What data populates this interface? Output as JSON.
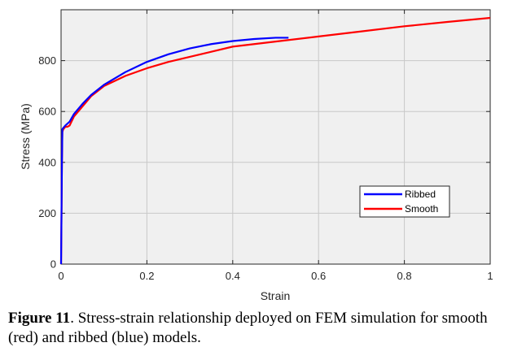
{
  "chart_data": {
    "type": "line",
    "xlabel": "Strain",
    "ylabel": "Stress (MPa)",
    "xlim": [
      0,
      1
    ],
    "ylim": [
      0,
      1000
    ],
    "xticks": [
      0,
      0.2,
      0.4,
      0.6,
      0.8,
      1
    ],
    "xtick_labels": [
      "0",
      "0.2",
      "0.4",
      "0.6",
      "0.8",
      "1"
    ],
    "yticks": [
      0,
      200,
      400,
      600,
      800
    ],
    "ytick_labels": [
      "0",
      "200",
      "400",
      "600",
      "800"
    ],
    "grid": true,
    "legend_position": "bottom-right",
    "series": [
      {
        "name": "Ribbed",
        "color": "#0000ff",
        "x": [
          0,
          0.001,
          0.002,
          0.003,
          0.005,
          0.01,
          0.02,
          0.03,
          0.05,
          0.07,
          0.1,
          0.15,
          0.2,
          0.25,
          0.3,
          0.35,
          0.4,
          0.45,
          0.5,
          0.53
        ],
        "y": [
          0,
          200,
          400,
          530,
          535,
          545,
          560,
          590,
          630,
          665,
          705,
          755,
          795,
          825,
          848,
          865,
          877,
          885,
          890,
          890
        ]
      },
      {
        "name": "Smooth",
        "color": "#ff0000",
        "x": [
          0,
          0.001,
          0.002,
          0.003,
          0.005,
          0.01,
          0.015,
          0.02,
          0.03,
          0.05,
          0.07,
          0.1,
          0.15,
          0.2,
          0.25,
          0.3,
          0.35,
          0.4,
          0.5,
          0.6,
          0.7,
          0.8,
          0.9,
          1.0
        ],
        "y": [
          0,
          200,
          400,
          520,
          530,
          540,
          540,
          545,
          580,
          620,
          660,
          700,
          740,
          770,
          795,
          815,
          835,
          855,
          875,
          895,
          915,
          935,
          952,
          968
        ]
      }
    ]
  },
  "caption": {
    "label": "Figure 11",
    "text": ". Stress-strain relationship deployed on FEM simulation for smooth (red) and ribbed (blue) models."
  }
}
